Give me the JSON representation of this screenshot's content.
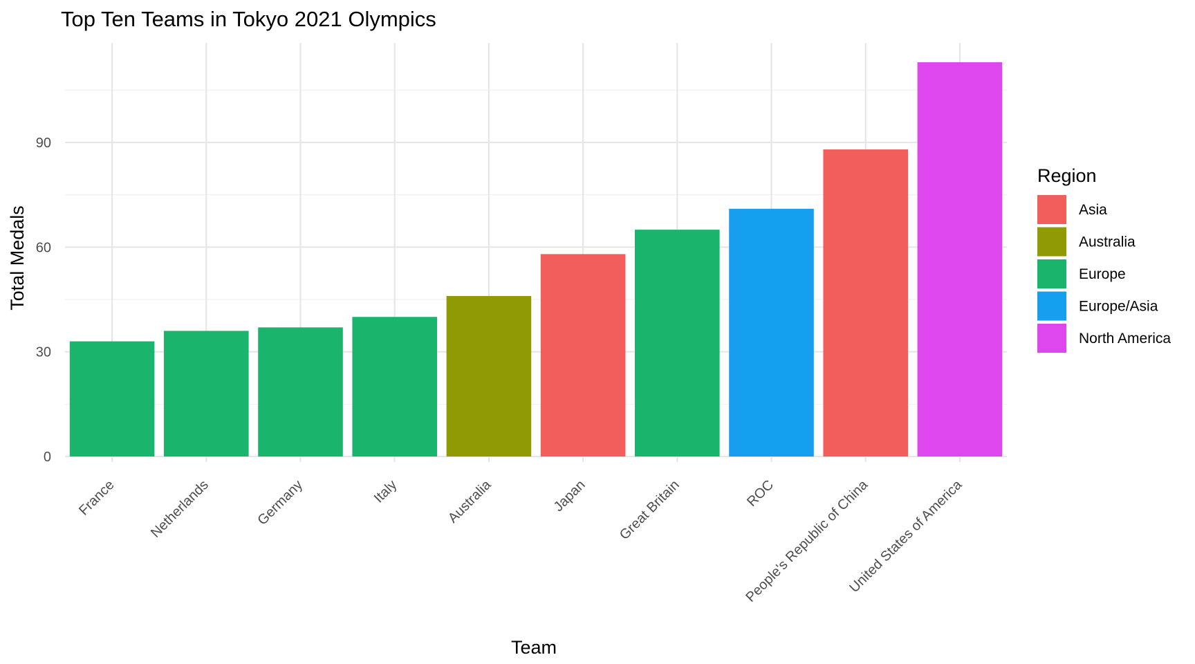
{
  "chart_data": {
    "type": "bar",
    "title": "Top Ten Teams in Tokyo 2021 Olympics",
    "xlabel": "Team",
    "ylabel": "Total Medals",
    "ylim": [
      0,
      118
    ],
    "yticks": [
      0,
      30,
      60,
      90
    ],
    "grid": true,
    "legend_position": "right",
    "legend_title": "Region",
    "categories": [
      "France",
      "Netherlands",
      "Germany",
      "Italy",
      "Australia",
      "Japan",
      "Great Britain",
      "ROC",
      "People's Republic of China",
      "United States of America"
    ],
    "values": [
      33,
      36,
      37,
      40,
      46,
      58,
      65,
      71,
      88,
      113
    ],
    "regions": [
      "Europe",
      "Europe",
      "Europe",
      "Europe",
      "Australia",
      "Asia",
      "Europe",
      "Europe/Asia",
      "Asia",
      "North America"
    ],
    "legend": [
      {
        "label": "Asia",
        "color": "#F8766D"
      },
      {
        "label": "Australia",
        "color": "#A3A500"
      },
      {
        "label": "Europe",
        "color": "#00BF7D"
      },
      {
        "label": "Europe/Asia",
        "color": "#00B0F6"
      },
      {
        "label": "North America",
        "color": "#E76BF3"
      }
    ],
    "colors": {
      "Asia": "#F25E5B",
      "Australia": "#909A05",
      "Europe": "#1BB46C",
      "Europe/Asia": "#179FEF",
      "North America": "#DF47EE"
    }
  }
}
